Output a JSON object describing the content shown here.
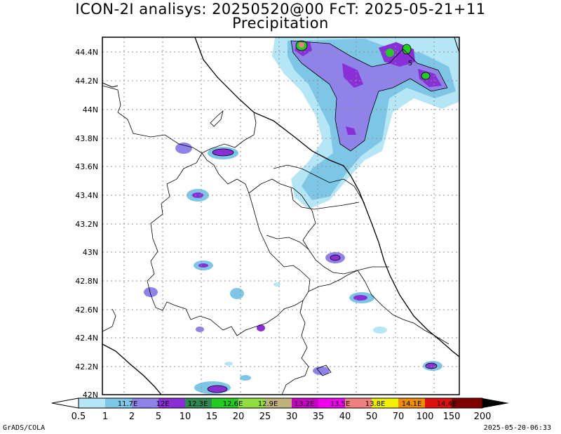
{
  "header": {
    "title_line1": "ICON-2I analisys: 20250520@00 FcT: 2025-05-21+11",
    "title_line2": "Precipitation"
  },
  "axis": {
    "lat_labels": [
      "44.4N",
      "44.2N",
      "44N",
      "43.8N",
      "43.6N",
      "43.4N",
      "43.2N",
      "43N",
      "42.8N",
      "42.6N",
      "42.4N",
      "42.2N",
      "42N"
    ]
  },
  "colorbar": {
    "boundary_labels": [
      "0.5",
      "1",
      "2",
      "5",
      "10",
      "15",
      "20",
      "25",
      "30",
      "35",
      "40",
      "50",
      "70",
      "100",
      "150",
      "200"
    ],
    "colors": [
      "#ffffff",
      "#b4e6f5",
      "#7ec6e6",
      "#8f82e8",
      "#8a2fd8",
      "#2e8a50",
      "#22cc22",
      "#90dd40",
      "#bfb27a",
      "#c800c8",
      "#f000f0",
      "#f08080",
      "#f0f000",
      "#f08c00",
      "#e01010",
      "#800000",
      "#000000"
    ],
    "lon_labels": [
      "11.7E",
      "12E",
      "12.3E",
      "12.6E",
      "12.9E",
      "13.2E",
      "13.5E",
      "13.8E",
      "14.1E",
      "14.4E"
    ]
  },
  "contour_label": "5",
  "footer": {
    "left": "GrADS/COLA",
    "right": "2025-05-20-06:33"
  }
}
